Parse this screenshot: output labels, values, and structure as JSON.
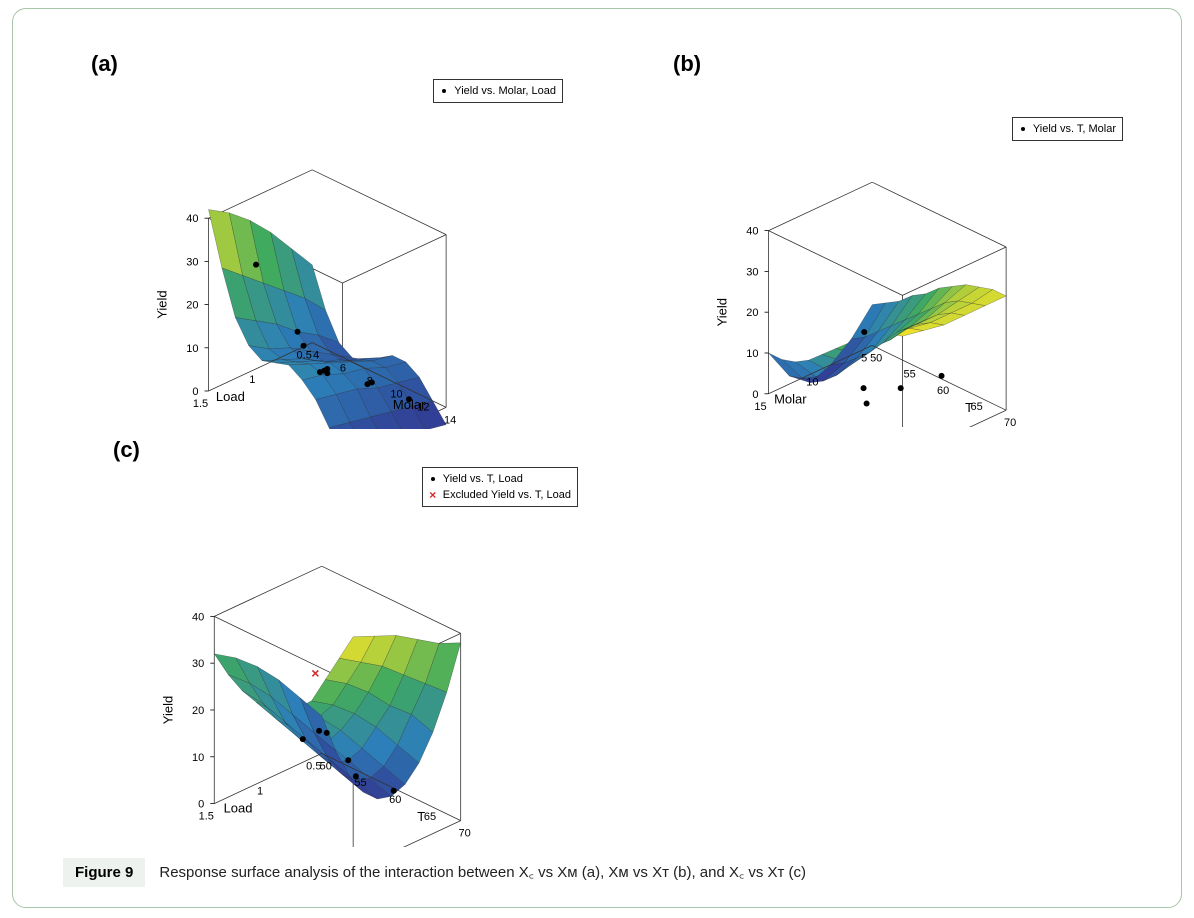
{
  "figure": {
    "label_a": "(a)",
    "label_b": "(b)",
    "label_c": "(c)",
    "caption_tag": "Figure 9",
    "caption_text": "Response surface analysis of the interaction between  X꜀ vs Xᴍ (a), Xᴍ vs Xᴛ (b), and X꜀ vs Xᴛ (c)"
  },
  "common": {
    "z_label": "Yield",
    "scatter_color": "#000000",
    "excluded_color": "#d62728",
    "surface_colormap_low": "#32338f",
    "surface_colormap_mid1": "#2c7fb8",
    "surface_colormap_mid2": "#41ab5d",
    "surface_colormap_high": "#fde725",
    "grid_line_color": "#333333",
    "background_color": "#ffffff",
    "tick_fontsize": 11,
    "label_fontsize": 13,
    "panel_label_fontsize": 22
  },
  "panel_a": {
    "type": "surface3d",
    "legend": "Yield vs. Molar, Load",
    "x_label": "Molar",
    "y_label": "Load",
    "z_label": "Yield",
    "x_range": [
      4,
      14
    ],
    "y_range": [
      0.5,
      1.5
    ],
    "z_range": [
      0,
      40
    ],
    "x_ticks": [
      4,
      6,
      8,
      10,
      12,
      14
    ],
    "y_ticks": [
      0.5,
      1.0,
      1.5
    ],
    "z_ticks": [
      0,
      10,
      20,
      30,
      40
    ],
    "surface_grid": {
      "x_values": [
        4,
        5,
        6,
        7,
        8,
        9,
        10,
        11,
        12,
        13,
        14
      ],
      "y_values": [
        0.5,
        0.7,
        0.9,
        1.1,
        1.3,
        1.5
      ],
      "z_matrix": [
        [
          18,
          9,
          3,
          1,
          2,
          4,
          6,
          6,
          4,
          0,
          -4
        ],
        [
          24,
          14,
          7,
          4,
          4,
          6,
          7,
          7,
          5,
          1,
          -3
        ],
        [
          30,
          18,
          10,
          7,
          6,
          8,
          9,
          9,
          6,
          2,
          -2
        ],
        [
          35,
          22,
          14,
          10,
          9,
          10,
          11,
          10,
          8,
          3,
          -1
        ],
        [
          39,
          26,
          17,
          12,
          11,
          12,
          13,
          12,
          9,
          4,
          0
        ],
        [
          42,
          30,
          20,
          15,
          13,
          14,
          15,
          13,
          10,
          5,
          1
        ]
      ]
    },
    "scatter_points": [
      {
        "x": 6,
        "y": 1.3,
        "z": 30
      },
      {
        "x": 6,
        "y": 0.9,
        "z": 10
      },
      {
        "x": 8,
        "y": 1.1,
        "z": 12
      },
      {
        "x": 8,
        "y": 0.9,
        "z": 4
      },
      {
        "x": 10,
        "y": 1.2,
        "z": 10
      },
      {
        "x": 10,
        "y": 0.7,
        "z": 2
      },
      {
        "x": 12,
        "y": 1.0,
        "z": 8
      },
      {
        "x": 12,
        "y": 0.6,
        "z": 0
      },
      {
        "x": 9,
        "y": 1.0,
        "z": 7
      },
      {
        "x": 9,
        "y": 1.0,
        "z": 6
      }
    ]
  },
  "panel_b": {
    "type": "surface3d",
    "legend": "Yield vs. T, Molar",
    "x_label": "T",
    "y_label": "Molar",
    "z_label": "Yield",
    "x_range": [
      50,
      70
    ],
    "y_range": [
      5,
      15
    ],
    "z_range": [
      0,
      40
    ],
    "x_ticks": [
      50,
      55,
      60,
      65,
      70
    ],
    "y_ticks": [
      5,
      10,
      15
    ],
    "z_ticks": [
      0,
      10,
      20,
      30,
      40
    ],
    "surface_grid": {
      "x_values": [
        50,
        52,
        54,
        56,
        58,
        60,
        62,
        64,
        66,
        68,
        70
      ],
      "y_values": [
        5,
        7,
        9,
        11,
        13,
        15
      ],
      "z_matrix": [
        [
          10,
          12,
          14,
          17,
          19,
          22,
          24,
          26,
          27,
          28,
          28
        ],
        [
          4,
          6,
          9,
          12,
          15,
          18,
          21,
          24,
          26,
          27,
          28
        ],
        [
          0,
          2,
          5,
          8,
          12,
          16,
          19,
          22,
          25,
          27,
          28
        ],
        [
          -2,
          0,
          3,
          7,
          11,
          15,
          18,
          22,
          25,
          27,
          28
        ],
        [
          2,
          3,
          5,
          8,
          12,
          16,
          19,
          23,
          26,
          28,
          29
        ],
        [
          10,
          10,
          11,
          13,
          16,
          19,
          22,
          25,
          27,
          29,
          30
        ]
      ]
    },
    "scatter_points": [
      {
        "x": 55,
        "y": 9,
        "z": 12
      },
      {
        "x": 58,
        "y": 11,
        "z": 3
      },
      {
        "x": 62,
        "y": 10,
        "z": 5
      },
      {
        "x": 65,
        "y": 8,
        "z": 8
      },
      {
        "x": 60,
        "y": 12,
        "z": 2
      }
    ]
  },
  "panel_c": {
    "type": "surface3d",
    "legend_items": [
      {
        "marker": "dot",
        "label": "Yield vs. T, Load"
      },
      {
        "marker": "x",
        "label": "Excluded Yield vs. T, Load"
      }
    ],
    "x_label": "T",
    "y_label": "Load",
    "z_label": "Yield",
    "x_range": [
      50,
      70
    ],
    "y_range": [
      0.5,
      1.5
    ],
    "z_range": [
      0,
      40
    ],
    "x_ticks": [
      50,
      55,
      60,
      65,
      70
    ],
    "y_ticks": [
      0.5,
      1.0,
      1.5
    ],
    "z_ticks": [
      0,
      10,
      20,
      30,
      40
    ],
    "surface_grid": {
      "x_values": [
        50,
        52,
        54,
        56,
        58,
        60,
        62,
        64,
        66,
        68,
        70
      ],
      "y_values": [
        0.5,
        0.7,
        0.9,
        1.1,
        1.3,
        1.5
      ],
      "z_matrix": [
        [
          8,
          2,
          -2,
          -4,
          -4,
          -2,
          2,
          8,
          16,
          26,
          38
        ],
        [
          14,
          8,
          4,
          2,
          2,
          4,
          8,
          14,
          22,
          30,
          40
        ],
        [
          20,
          14,
          10,
          8,
          8,
          10,
          14,
          20,
          26,
          34,
          43
        ],
        [
          25,
          20,
          16,
          14,
          14,
          16,
          20,
          25,
          31,
          38,
          46
        ],
        [
          29,
          25,
          22,
          20,
          20,
          22,
          25,
          29,
          35,
          41,
          48
        ],
        [
          32,
          29,
          27,
          26,
          26,
          27,
          29,
          32,
          38,
          44,
          50
        ]
      ]
    },
    "scatter_points": [
      {
        "x": 55,
        "y": 1.0,
        "z": 12
      },
      {
        "x": 60,
        "y": 1.1,
        "z": 18
      },
      {
        "x": 60,
        "y": 0.9,
        "z": 10
      },
      {
        "x": 65,
        "y": 0.8,
        "z": 6
      },
      {
        "x": 62,
        "y": 1.3,
        "z": 22
      },
      {
        "x": 58,
        "y": 0.7,
        "z": 3
      }
    ],
    "excluded_points": [
      {
        "x": 63,
        "y": 1.4,
        "z": 36
      }
    ]
  }
}
